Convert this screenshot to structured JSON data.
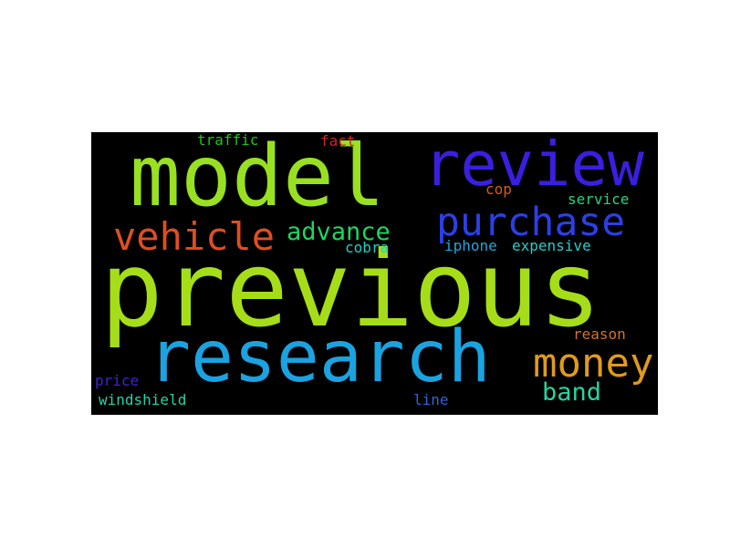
{
  "background_color": "#000000",
  "words": {
    "previous": {
      "text": "previous",
      "color": "#a5de18"
    },
    "model": {
      "text": "model",
      "color": "#98e021"
    },
    "review": {
      "text": "review",
      "color": "#3a1fe0"
    },
    "research": {
      "text": "research",
      "color": "#1aa3e0"
    },
    "purchase": {
      "text": "purchase",
      "color": "#2c3fe6"
    },
    "vehicle": {
      "text": "vehicle",
      "color": "#e04e1f"
    },
    "advance": {
      "text": "advance",
      "color": "#1bd660"
    },
    "money": {
      "text": "money",
      "color": "#e09a1c"
    },
    "band": {
      "text": "band",
      "color": "#22d6a0"
    },
    "traffic": {
      "text": "traffic",
      "color": "#1fc41f"
    },
    "fact": {
      "text": "fact",
      "color": "#cf2626"
    },
    "cop": {
      "text": "cop",
      "color": "#d65b1e"
    },
    "service": {
      "text": "service",
      "color": "#21d58a"
    },
    "cobra": {
      "text": "cobra",
      "color": "#1ad3c3"
    },
    "iphone": {
      "text": "iphone",
      "color": "#1ba8df"
    },
    "expensive": {
      "text": "expensive",
      "color": "#1fcfcf"
    },
    "reason": {
      "text": "reason",
      "color": "#d5702a"
    },
    "price": {
      "text": "price",
      "color": "#4420d6"
    },
    "windshield": {
      "text": "windshield",
      "color": "#21d6a6"
    },
    "line": {
      "text": "line",
      "color": "#2f63de"
    }
  }
}
